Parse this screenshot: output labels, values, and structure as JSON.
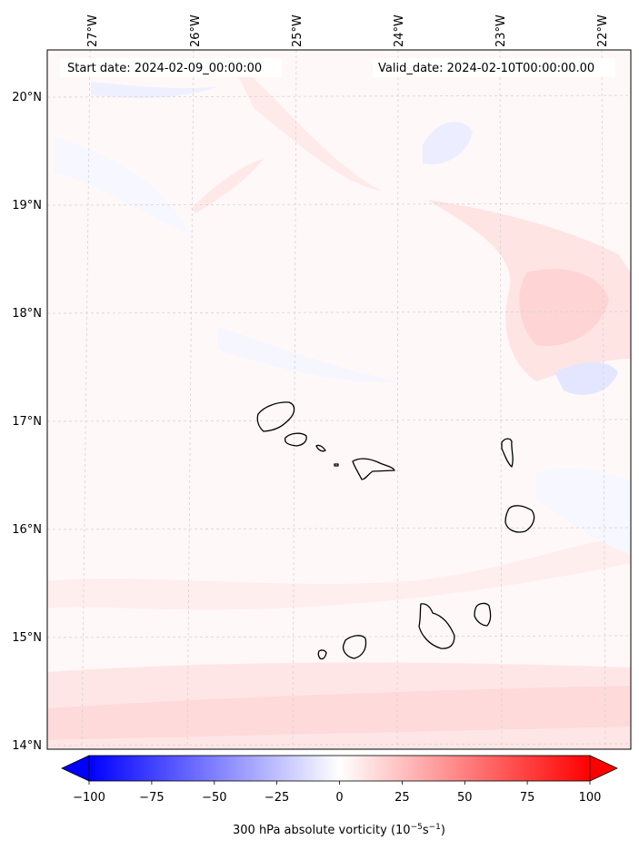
{
  "annotations": {
    "start_date": "Start date: 2024-02-09_00:00:00",
    "valid_date": "Valid_date: 2024-02-10T00:00:00.00"
  },
  "longitude_labels": [
    "27°W",
    "26°W",
    "25°W",
    "24°W",
    "23°W",
    "22°W"
  ],
  "latitude_labels": [
    "20°N",
    "19°N",
    "18°N",
    "17°N",
    "16°N",
    "15°N",
    "14°N"
  ],
  "colorbar": {
    "ticks": [
      "−100",
      "−75",
      "−50",
      "−25",
      "0",
      "25",
      "50",
      "75",
      "100"
    ],
    "label_prefix": "300 hPa absolute vorticity (10",
    "label_exp1": "−5",
    "label_mid": "s",
    "label_exp2": "−1",
    "label_suffix": ")",
    "min": -100,
    "max": 100,
    "colormap": "bwr"
  },
  "colors": {
    "negative": "#0000ff",
    "neutral": "#ffffff",
    "positive": "#ff0000",
    "coastline": "#000000",
    "grid": "#cccccc"
  }
}
